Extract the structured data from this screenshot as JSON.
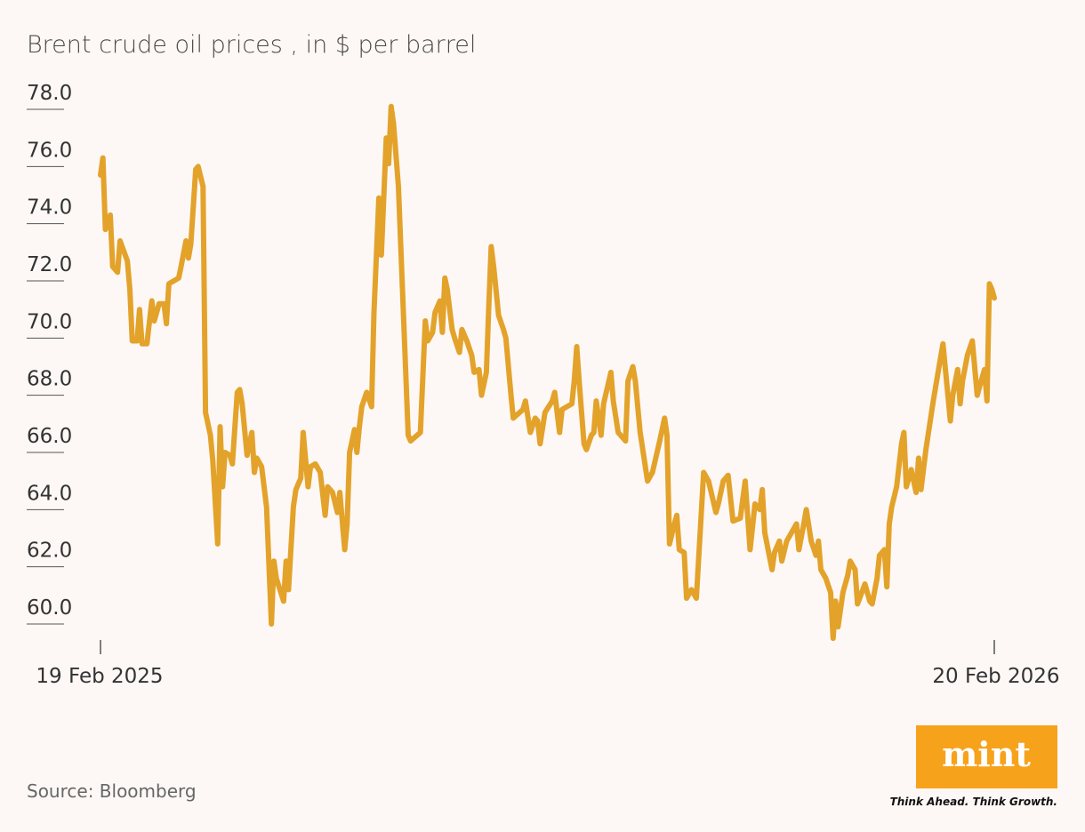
{
  "chart_data": {
    "type": "line",
    "title": "Brent crude oil prices , in $ per barrel",
    "source": "Source: Bloomberg",
    "color": "#e3a22a",
    "x": [
      "2025-02-19",
      "2025-02-20",
      "2025-02-21",
      "2025-02-23",
      "2025-02-24",
      "2025-02-26",
      "2025-02-27",
      "2025-03-02",
      "2025-03-03",
      "2025-03-04",
      "2025-03-06",
      "2025-03-07",
      "2025-03-08",
      "2025-03-10",
      "2025-03-12",
      "2025-03-13",
      "2025-03-15",
      "2025-03-17",
      "2025-03-18",
      "2025-03-19",
      "2025-03-23",
      "2025-03-24",
      "2025-03-26",
      "2025-03-27",
      "2025-03-28",
      "2025-03-30",
      "2025-03-31",
      "2025-04-02",
      "2025-04-03",
      "2025-04-05",
      "2025-04-06",
      "2025-04-08",
      "2025-04-09",
      "2025-04-10",
      "2025-04-11",
      "2025-04-13",
      "2025-04-14",
      "2025-04-16",
      "2025-04-17",
      "2025-04-18",
      "2025-04-20",
      "2025-04-22",
      "2025-04-23",
      "2025-04-24",
      "2025-04-26",
      "2025-04-28",
      "2025-04-30",
      "2025-05-01",
      "2025-05-02",
      "2025-05-05",
      "2025-05-06",
      "2025-05-07",
      "2025-05-09",
      "2025-05-10",
      "2025-05-12",
      "2025-05-13",
      "2025-05-15",
      "2025-05-16",
      "2025-05-18",
      "2025-05-20",
      "2025-05-22",
      "2025-05-23",
      "2025-05-25",
      "2025-05-27",
      "2025-05-28",
      "2025-05-30",
      "2025-05-31",
      "2025-06-01",
      "2025-06-03",
      "2025-06-04",
      "2025-06-05",
      "2025-06-06",
      "2025-06-08",
      "2025-06-10",
      "2025-06-11",
      "2025-06-13",
      "2025-06-14",
      "2025-06-16",
      "2025-06-17",
      "2025-06-18",
      "2025-06-19",
      "2025-06-21",
      "2025-06-25",
      "2025-06-26",
      "2025-06-30",
      "2025-07-02",
      "2025-07-03",
      "2025-07-05",
      "2025-07-06",
      "2025-07-08",
      "2025-07-09",
      "2025-07-10",
      "2025-07-11",
      "2025-07-13",
      "2025-07-14",
      "2025-07-16",
      "2025-07-17",
      "2025-07-19",
      "2025-07-21",
      "2025-07-22",
      "2025-07-24",
      "2025-07-25",
      "2025-07-27",
      "2025-07-28",
      "2025-07-29",
      "2025-07-30",
      "2025-08-01",
      "2025-08-03",
      "2025-08-04",
      "2025-08-06",
      "2025-08-07",
      "2025-08-11",
      "2025-08-12",
      "2025-08-14",
      "2025-08-16",
      "2025-08-17",
      "2025-08-18",
      "2025-08-20",
      "2025-08-23",
      "2025-08-24",
      "2025-08-26",
      "2025-08-27",
      "2025-08-31",
      "2025-09-01",
      "2025-09-02",
      "2025-09-03",
      "2025-09-05",
      "2025-09-06",
      "2025-09-08",
      "2025-09-09",
      "2025-09-10",
      "2025-09-12",
      "2025-09-13",
      "2025-09-16",
      "2025-09-17",
      "2025-09-19",
      "2025-09-22",
      "2025-09-23",
      "2025-09-25",
      "2025-09-26",
      "2025-09-28",
      "2025-10-01",
      "2025-10-03",
      "2025-10-06",
      "2025-10-08",
      "2025-10-09",
      "2025-10-10",
      "2025-10-12",
      "2025-10-13",
      "2025-10-14",
      "2025-10-16",
      "2025-10-17",
      "2025-10-19",
      "2025-10-21",
      "2025-10-24",
      "2025-10-26",
      "2025-10-29",
      "2025-10-30",
      "2025-11-01",
      "2025-11-03",
      "2025-11-05",
      "2025-11-08",
      "2025-11-10",
      "2025-11-12",
      "2025-11-14",
      "2025-11-16",
      "2025-11-17",
      "2025-11-18",
      "2025-11-21",
      "2025-11-22",
      "2025-11-24",
      "2025-11-25",
      "2025-11-27",
      "2025-12-01",
      "2025-12-02",
      "2025-12-04",
      "2025-12-05",
      "2025-12-07",
      "2025-12-09",
      "2025-12-10",
      "2025-12-11",
      "2025-12-13",
      "2025-12-15",
      "2025-12-16",
      "2025-12-17",
      "2025-12-18",
      "2025-12-20",
      "2025-12-22",
      "2025-12-23",
      "2025-12-25",
      "2025-12-26",
      "2025-12-29",
      "2025-12-31",
      "2026-01-01",
      "2026-01-03",
      "2026-01-04",
      "2026-01-06",
      "2026-01-07",
      "2026-01-08",
      "2026-01-09",
      "2026-01-11",
      "2026-01-13",
      "2026-01-14",
      "2026-01-15",
      "2026-01-17",
      "2026-01-19",
      "2026-01-20",
      "2026-01-21",
      "2026-01-23",
      "2026-01-26",
      "2026-01-28",
      "2026-01-30",
      "2026-02-02",
      "2026-02-03",
      "2026-02-05",
      "2026-02-06",
      "2026-02-07",
      "2026-02-09",
      "2026-02-11",
      "2026-02-13",
      "2026-02-14",
      "2026-02-16",
      "2026-02-17",
      "2026-02-18",
      "2026-02-19",
      "2026-02-20"
    ],
    "values": [
      75.7,
      76.3,
      73.8,
      74.3,
      72.5,
      72.3,
      73.4,
      72.7,
      71.7,
      69.9,
      69.9,
      71.0,
      69.8,
      69.8,
      71.3,
      70.6,
      71.2,
      71.2,
      70.5,
      71.9,
      72.1,
      72.5,
      73.4,
      72.8,
      73.3,
      75.9,
      76.0,
      75.3,
      67.4,
      66.6,
      65.7,
      62.8,
      66.9,
      64.8,
      66.0,
      65.9,
      65.6,
      68.1,
      68.2,
      67.7,
      65.9,
      66.7,
      65.3,
      65.8,
      65.5,
      64.1,
      60.0,
      62.2,
      61.6,
      60.8,
      62.2,
      61.2,
      64.1,
      64.7,
      65.1,
      66.7,
      64.8,
      65.5,
      65.6,
      65.3,
      63.8,
      64.8,
      64.6,
      63.9,
      64.6,
      62.6,
      63.5,
      66.0,
      66.8,
      66.0,
      66.9,
      67.6,
      68.1,
      67.6,
      70.9,
      74.9,
      72.9,
      77.0,
      76.1,
      78.1,
      77.5,
      75.3,
      66.6,
      66.4,
      66.7,
      70.6,
      69.9,
      70.2,
      70.9,
      71.3,
      70.2,
      72.1,
      71.7,
      70.3,
      70.0,
      69.5,
      70.3,
      69.9,
      69.4,
      68.8,
      68.9,
      68.0,
      68.8,
      71.1,
      73.2,
      72.5,
      70.8,
      70.3,
      70.0,
      68.1,
      67.2,
      67.5,
      67.8,
      66.7,
      67.2,
      67.1,
      66.3,
      67.4,
      67.8,
      68.1,
      66.7,
      67.5,
      67.7,
      68.5,
      69.7,
      68.5,
      66.3,
      66.1,
      66.6,
      66.7,
      67.8,
      66.6,
      67.7,
      68.8,
      67.8,
      66.7,
      66.4,
      68.5,
      69.0,
      68.5,
      66.7,
      65.0,
      65.3,
      66.4,
      67.2,
      66.6,
      62.8,
      63.5,
      63.8,
      62.6,
      62.5,
      60.9,
      61.2,
      60.9,
      65.3,
      65.0,
      63.9,
      64.2,
      65.0,
      65.2,
      63.6,
      63.7,
      65.0,
      62.6,
      64.2,
      64.0,
      64.7,
      63.2,
      61.9,
      62.5,
      62.9,
      62.2,
      62.9,
      63.5,
      62.6,
      63.5,
      64.0,
      62.9,
      62.4,
      62.9,
      61.9,
      61.6,
      61.1,
      59.5,
      60.8,
      59.9,
      61.1,
      61.7,
      62.2,
      61.9,
      60.7,
      61.4,
      60.8,
      60.7,
      61.6,
      62.4,
      62.6,
      61.3,
      63.5,
      64.1,
      64.8,
      66.3,
      66.7,
      64.8,
      65.4,
      64.6,
      65.8,
      64.7,
      66.1,
      67.8,
      68.8,
      69.8,
      67.1,
      68.0,
      68.9,
      67.7,
      68.5,
      69.4,
      69.9,
      68.0,
      68.3,
      68.9,
      67.8,
      71.9,
      71.7,
      71.4
    ],
    "xlim": [
      "2025-02-19",
      "2026-02-20"
    ],
    "xticks": [
      {
        "value": "2025-02-19",
        "label": "19 Feb 2025"
      },
      {
        "value": "2026-02-20",
        "label": "20 Feb 2026"
      }
    ],
    "ylim": [
      59.3,
      78.6
    ],
    "yticks": [
      {
        "value": 60,
        "label": "60.0"
      },
      {
        "value": 62,
        "label": "62.0"
      },
      {
        "value": 64,
        "label": "64.0"
      },
      {
        "value": 66,
        "label": "66.0"
      },
      {
        "value": 68,
        "label": "68.0"
      },
      {
        "value": 70,
        "label": "70.0"
      },
      {
        "value": 72,
        "label": "72.0"
      },
      {
        "value": 74,
        "label": "74.0"
      },
      {
        "value": 76,
        "label": "76.0"
      },
      {
        "value": 78,
        "label": "78.0"
      }
    ]
  },
  "branding": {
    "logo": "mint",
    "tagline": "Think Ahead. Think Growth."
  }
}
